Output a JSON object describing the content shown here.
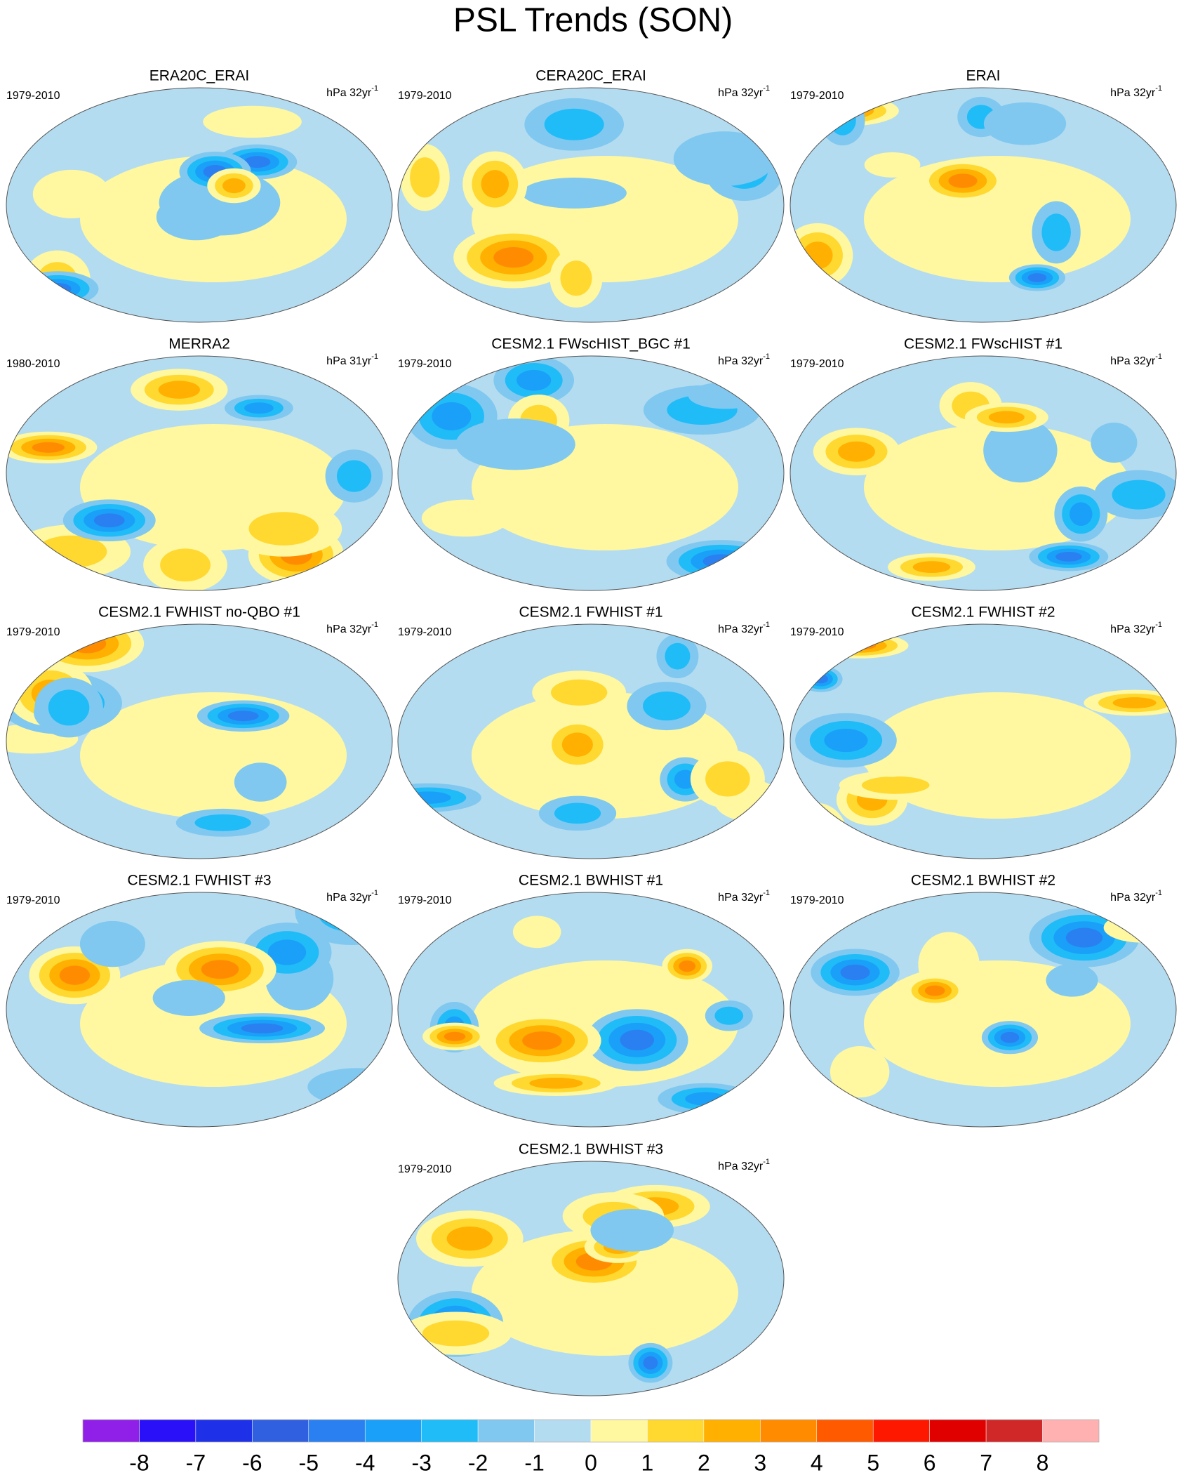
{
  "title": "PSL Trends (SON)",
  "panels": [
    {
      "title": "ERA20C_ERAI",
      "period": "1979-2010",
      "units": "hPa 32yr",
      "units_exponent": "-1"
    },
    {
      "title": "CERA20C_ERAI",
      "period": "1979-2010",
      "units": "hPa 32yr",
      "units_exponent": "-1"
    },
    {
      "title": "ERAI",
      "period": "1979-2010",
      "units": "hPa 32yr",
      "units_exponent": "-1"
    },
    {
      "title": "MERRA2",
      "period": "1980-2010",
      "units": "hPa 31yr",
      "units_exponent": "-1"
    },
    {
      "title": "CESM2.1 FWscHIST_BGC #1",
      "period": "1979-2010",
      "units": "hPa 32yr",
      "units_exponent": "-1"
    },
    {
      "title": "CESM2.1 FWscHIST #1",
      "period": "1979-2010",
      "units": "hPa 32yr",
      "units_exponent": "-1"
    },
    {
      "title": "CESM2.1 FWHIST no-QBO #1",
      "period": "1979-2010",
      "units": "hPa 32yr",
      "units_exponent": "-1"
    },
    {
      "title": "CESM2.1 FWHIST #1",
      "period": "1979-2010",
      "units": "hPa 32yr",
      "units_exponent": "-1"
    },
    {
      "title": "CESM2.1 FWHIST #2",
      "period": "1979-2010",
      "units": "hPa 32yr",
      "units_exponent": "-1"
    },
    {
      "title": "CESM2.1 FWHIST #3",
      "period": "1979-2010",
      "units": "hPa 32yr",
      "units_exponent": "-1"
    },
    {
      "title": "CESM2.1 BWHIST #1",
      "period": "1979-2010",
      "units": "hPa 32yr",
      "units_exponent": "-1"
    },
    {
      "title": "CESM2.1 BWHIST #2",
      "period": "1979-2010",
      "units": "hPa 32yr",
      "units_exponent": "-1"
    },
    {
      "title": "CESM2.1 BWHIST #3",
      "period": "1979-2010",
      "units": "hPa 32yr",
      "units_exponent": "-1"
    }
  ],
  "colorbar": {
    "colors": [
      "#9020e8",
      "#2a10f8",
      "#1e30e8",
      "#3060e0",
      "#2a80f0",
      "#1aa0f8",
      "#20bcf8",
      "#80c8f0",
      "#b4dcf0",
      "#fff8a0",
      "#ffd830",
      "#ffb000",
      "#ff8c00",
      "#ff5a00",
      "#ff1800",
      "#e00000",
      "#d02828",
      "#ffb0b0"
    ],
    "ticks": [
      -8,
      -7,
      -6,
      -5,
      -4,
      -3,
      -2,
      -1,
      0,
      1,
      2,
      3,
      4,
      5,
      6,
      7,
      8
    ]
  }
}
